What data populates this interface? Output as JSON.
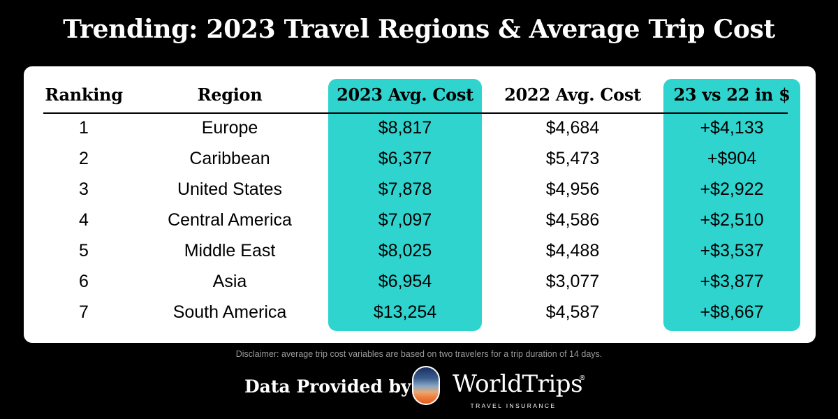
{
  "title": "Trending: 2023 Travel Regions & Average Trip Cost",
  "table": {
    "headers": {
      "rank": "Ranking",
      "region": "Region",
      "cost_2023": "2023 Avg. Cost",
      "cost_2022": "2022 Avg. Cost",
      "diff": "23 vs 22 in $"
    },
    "rows": [
      {
        "rank": "1",
        "region": "Europe",
        "cost_2023": "$8,817",
        "cost_2022": "$4,684",
        "diff": "+$4,133"
      },
      {
        "rank": "2",
        "region": "Caribbean",
        "cost_2023": "$6,377",
        "cost_2022": "$5,473",
        "diff": "+$904"
      },
      {
        "rank": "3",
        "region": "United States",
        "cost_2023": "$7,878",
        "cost_2022": "$4,956",
        "diff": "+$2,922"
      },
      {
        "rank": "4",
        "region": "Central America",
        "cost_2023": "$7,097",
        "cost_2022": "$4,586",
        "diff": "+$2,510"
      },
      {
        "rank": "5",
        "region": "Middle East",
        "cost_2023": "$8,025",
        "cost_2022": "$4,488",
        "diff": "+$3,537"
      },
      {
        "rank": "6",
        "region": "Asia",
        "cost_2023": "$6,954",
        "cost_2022": "$3,077",
        "diff": "+$3,877"
      },
      {
        "rank": "7",
        "region": "South America",
        "cost_2023": "$13,254",
        "cost_2022": "$4,587",
        "diff": "+$8,667"
      }
    ]
  },
  "disclaimer": "Disclaimer: average trip cost variables are based on two travelers for a trip duration of 14 days.",
  "footer": {
    "credit": "Data Provided by",
    "brand": "WorldTrips",
    "brand_reg": "®",
    "brand_tagline": "TRAVEL INSURANCE",
    "logo_icon": "sunset-badge-icon"
  },
  "colors": {
    "background": "#000000",
    "card": "#ffffff",
    "highlight": "#2fd4cf"
  }
}
